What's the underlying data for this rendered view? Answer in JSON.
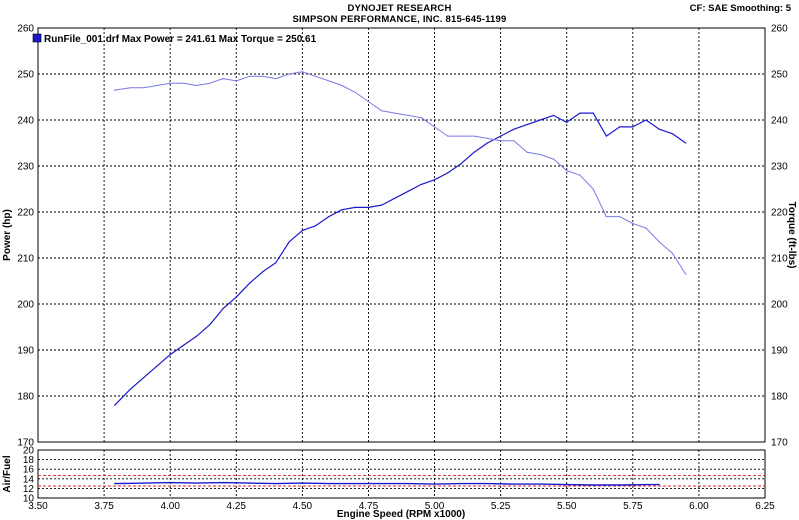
{
  "header": {
    "title": "DYNOJET RESEARCH",
    "subtitle": "SIMPSON PERFORMANCE, INC.   815-645-1199",
    "cf": "CF: SAE  Smoothing: 5"
  },
  "colors": {
    "power": "#1a1acc",
    "torque": "#7a7ae8",
    "air_fuel": "#1a1acc",
    "ref_line": "#e02020",
    "grid": "#000000"
  },
  "chart_data": [
    {
      "type": "line",
      "title": "",
      "legend": {
        "text": "RunFile_001.drf Max Power = 241.61     Max Torque = 250.61",
        "placement": "top-left"
      },
      "xlabel": "Engine Speed (RPM x1000)",
      "xlim": [
        3.5,
        6.25
      ],
      "xticks": [
        "3.50",
        "3.75",
        "4.00",
        "4.25",
        "4.50",
        "4.75",
        "5.00",
        "5.25",
        "5.50",
        "5.75",
        "6.00",
        "6.25"
      ],
      "ylabel": "Power (hp)",
      "ylim": [
        170,
        260
      ],
      "yticks": [
        "170",
        "180",
        "190",
        "200",
        "210",
        "220",
        "230",
        "240",
        "250",
        "260"
      ],
      "y2label": "Torque (ft-lbs)",
      "y2lim": [
        170,
        260
      ],
      "y2ticks": [
        "170",
        "180",
        "190",
        "200",
        "210",
        "220",
        "230",
        "240",
        "250",
        "260"
      ],
      "grid": true,
      "series": [
        {
          "name": "Power",
          "axis": "left",
          "x": [
            3.79,
            3.85,
            3.9,
            3.95,
            4.0,
            4.05,
            4.1,
            4.15,
            4.2,
            4.25,
            4.3,
            4.35,
            4.4,
            4.45,
            4.5,
            4.55,
            4.6,
            4.65,
            4.7,
            4.75,
            4.8,
            4.85,
            4.9,
            4.95,
            5.0,
            5.05,
            5.1,
            5.15,
            5.2,
            5.25,
            5.3,
            5.35,
            5.4,
            5.45,
            5.5,
            5.55,
            5.6,
            5.65,
            5.7,
            5.75,
            5.8,
            5.85,
            5.9,
            5.95
          ],
          "values": [
            178,
            181.5,
            184,
            186.5,
            189,
            191,
            193,
            195.5,
            199,
            201.5,
            204.5,
            207,
            209,
            213.5,
            216,
            217,
            219,
            220.5,
            221,
            221,
            221.5,
            223,
            224.5,
            226,
            227,
            228.5,
            230.5,
            233,
            235,
            236.5,
            238,
            239,
            240,
            241,
            239.5,
            241.5,
            241.5,
            236.5,
            238.5,
            238.5,
            240,
            238,
            237,
            235
          ]
        },
        {
          "name": "Torque",
          "axis": "right",
          "x": [
            3.79,
            3.85,
            3.9,
            3.95,
            4.0,
            4.05,
            4.1,
            4.15,
            4.2,
            4.25,
            4.3,
            4.35,
            4.4,
            4.45,
            4.5,
            4.55,
            4.6,
            4.65,
            4.7,
            4.75,
            4.8,
            4.85,
            4.9,
            4.95,
            5.0,
            5.05,
            5.1,
            5.15,
            5.2,
            5.25,
            5.3,
            5.35,
            5.4,
            5.45,
            5.5,
            5.55,
            5.6,
            5.65,
            5.7,
            5.75,
            5.8,
            5.85,
            5.9,
            5.95
          ],
          "values": [
            246.5,
            247,
            247,
            247.5,
            248,
            248,
            247.5,
            248,
            249,
            248.5,
            249.5,
            249.5,
            249,
            250,
            250.5,
            249.5,
            248.5,
            247.5,
            246,
            244,
            242,
            241.5,
            241,
            240.5,
            238.5,
            236.5,
            236.5,
            236.5,
            236,
            235.5,
            235.5,
            233,
            232.5,
            231.5,
            229,
            228,
            225,
            219,
            219,
            217.5,
            216.5,
            213.5,
            211,
            206.5
          ]
        }
      ]
    },
    {
      "type": "line",
      "title": "",
      "xlabel": "Engine Speed (RPM x1000)",
      "xlim": [
        3.5,
        6.25
      ],
      "ylabel": "Air/Fuel",
      "ylim": [
        10,
        20
      ],
      "yticks": [
        "10",
        "12",
        "14",
        "16",
        "18",
        "20"
      ],
      "grid": true,
      "reference_lines": [
        14.7,
        12.5
      ],
      "series": [
        {
          "name": "Air/Fuel",
          "x": [
            3.79,
            3.9,
            4.0,
            4.1,
            4.2,
            4.3,
            4.4,
            4.5,
            4.6,
            4.7,
            4.8,
            4.9,
            5.0,
            5.1,
            5.2,
            5.3,
            5.4,
            5.5,
            5.6,
            5.7,
            5.8,
            5.85
          ],
          "values": [
            13.0,
            13.1,
            13.2,
            13.1,
            13.2,
            13.1,
            13.0,
            13.1,
            13.0,
            13.0,
            13.0,
            13.0,
            12.9,
            13.0,
            13.0,
            12.9,
            12.9,
            12.8,
            12.7,
            12.7,
            12.8,
            12.8
          ]
        }
      ]
    }
  ]
}
